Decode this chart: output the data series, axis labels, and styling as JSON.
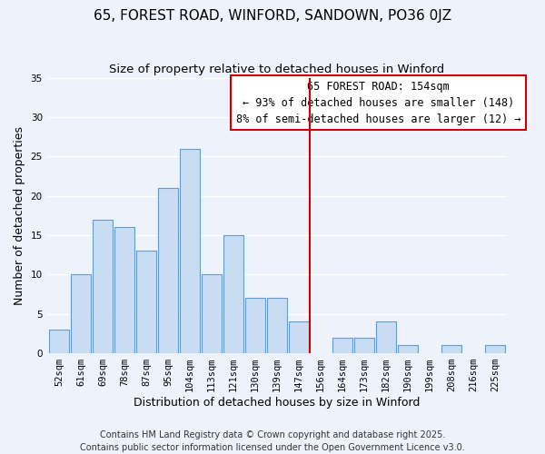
{
  "title": "65, FOREST ROAD, WINFORD, SANDOWN, PO36 0JZ",
  "subtitle": "Size of property relative to detached houses in Winford",
  "xlabel": "Distribution of detached houses by size in Winford",
  "ylabel": "Number of detached properties",
  "bar_labels": [
    "52sqm",
    "61sqm",
    "69sqm",
    "78sqm",
    "87sqm",
    "95sqm",
    "104sqm",
    "113sqm",
    "121sqm",
    "130sqm",
    "139sqm",
    "147sqm",
    "156sqm",
    "164sqm",
    "173sqm",
    "182sqm",
    "190sqm",
    "199sqm",
    "208sqm",
    "216sqm",
    "225sqm"
  ],
  "bar_values": [
    3,
    10,
    17,
    16,
    13,
    21,
    26,
    10,
    15,
    7,
    7,
    4,
    0,
    2,
    2,
    4,
    1,
    0,
    1,
    0,
    1
  ],
  "bar_color": "#c8ddf2",
  "bar_edge_color": "#6699cc",
  "vline_pos": 11.5,
  "property_line_label": "65 FOREST ROAD: 154sqm",
  "annotation_line1": "← 93% of detached houses are smaller (148)",
  "annotation_line2": "8% of semi-detached houses are larger (12) →",
  "annotation_box_facecolor": "#ffffff",
  "annotation_box_edgecolor": "#cc0000",
  "vline_color": "#cc0000",
  "ylim": [
    0,
    35
  ],
  "yticks": [
    0,
    5,
    10,
    15,
    20,
    25,
    30,
    35
  ],
  "footer1": "Contains HM Land Registry data © Crown copyright and database right 2025.",
  "footer2": "Contains public sector information licensed under the Open Government Licence v3.0.",
  "bg_color": "#eef3fb",
  "grid_color": "#ffffff",
  "title_fontsize": 11,
  "subtitle_fontsize": 9.5,
  "axis_label_fontsize": 9,
  "tick_fontsize": 7.5,
  "annotation_fontsize": 8.5,
  "footer_fontsize": 7
}
